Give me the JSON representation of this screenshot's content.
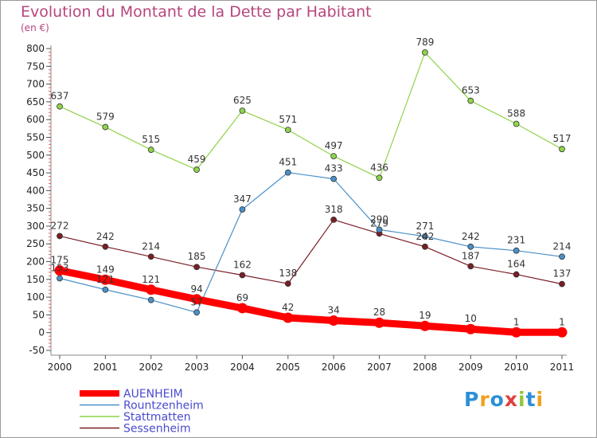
{
  "chart_data": {
    "type": "line",
    "title": "Evolution du Montant de la Dette par Habitant",
    "subtitle": "(en €)",
    "x": [
      "2000",
      "2001",
      "2002",
      "2003",
      "2004",
      "2005",
      "2006",
      "2007",
      "2008",
      "2009",
      "2010",
      "2011"
    ],
    "ylim": [
      -50,
      800
    ],
    "yticks": [
      -50,
      0,
      50,
      100,
      150,
      200,
      250,
      300,
      350,
      400,
      450,
      500,
      550,
      600,
      650,
      700,
      750,
      800
    ],
    "grid": false,
    "legend_position": "bottom-left",
    "series": [
      {
        "name": "AUENHEIM",
        "color": "#ff0000",
        "values": [
          175,
          149,
          121,
          94,
          69,
          42,
          34,
          28,
          19,
          10,
          1,
          1
        ],
        "labels": [
          "175",
          "149",
          "121",
          "94",
          "69",
          "42",
          "34",
          "28",
          "19",
          "10",
          "1",
          "1"
        ]
      },
      {
        "name": "Rountzenheim",
        "color": "#4a90c8",
        "values": [
          153,
          121,
          92,
          57,
          347,
          451,
          433,
          290,
          271,
          242,
          231,
          214
        ],
        "labels": [
          "153",
          "121",
          "",
          "57",
          "347",
          "451",
          "433",
          "290",
          "271",
          "242",
          "231",
          "214"
        ]
      },
      {
        "name": "Stattmatten",
        "color": "#8fd44a",
        "values": [
          637,
          579,
          515,
          459,
          625,
          571,
          497,
          436,
          789,
          653,
          588,
          517
        ],
        "labels": [
          "637",
          "579",
          "515",
          "459",
          "625",
          "571",
          "497",
          "436",
          "789",
          "653",
          "588",
          "517"
        ]
      },
      {
        "name": "Sessenheim",
        "color": "#7a1e26",
        "values": [
          272,
          242,
          214,
          185,
          162,
          138,
          318,
          279,
          242,
          187,
          164,
          137
        ],
        "labels": [
          "272",
          "242",
          "214",
          "185",
          "162",
          "138",
          "318",
          "279",
          "242",
          "187",
          "164",
          "137"
        ]
      }
    ]
  },
  "logo": {
    "letters": [
      "P",
      "r",
      "o",
      "x",
      "i",
      "t",
      "i"
    ],
    "colors": [
      "#2b8fd6",
      "#f0a020",
      "#2b8fd6",
      "#e04040",
      "#8fc83a",
      "#2b8fd6",
      "#f0a020"
    ]
  }
}
